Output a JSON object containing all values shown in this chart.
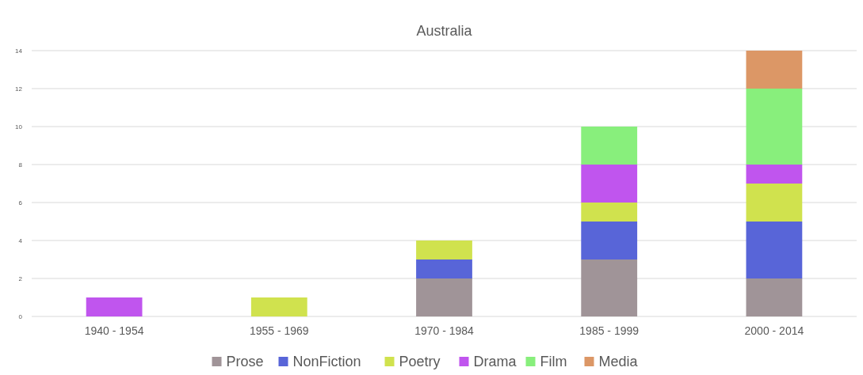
{
  "chart_data": {
    "type": "bar",
    "title": "Australia",
    "stacked": true,
    "grid": "y",
    "legend": "bottom",
    "categories": [
      "1940 - 1954",
      "1955 - 1969",
      "1970 - 1984",
      "1985 - 1999",
      "2000 - 2014"
    ],
    "ylim": [
      0,
      14
    ],
    "yticks": [
      0,
      2,
      4,
      6,
      8,
      10,
      12,
      14
    ],
    "series": [
      {
        "name": "Prose",
        "color": "#a09498",
        "values": [
          0,
          0,
          2,
          3,
          2
        ]
      },
      {
        "name": "NonFiction",
        "color": "#5865d8",
        "values": [
          0,
          0,
          1,
          2,
          3
        ]
      },
      {
        "name": "Poetry",
        "color": "#d0e24e",
        "values": [
          0,
          1,
          1,
          1,
          2
        ]
      },
      {
        "name": "Drama",
        "color": "#c055ee",
        "values": [
          1,
          0,
          0,
          2,
          1
        ]
      },
      {
        "name": "Film",
        "color": "#88ef7c",
        "values": [
          0,
          0,
          0,
          2,
          4
        ]
      },
      {
        "name": "Media",
        "color": "#dc9766",
        "values": [
          0,
          0,
          0,
          0,
          2
        ]
      }
    ]
  }
}
